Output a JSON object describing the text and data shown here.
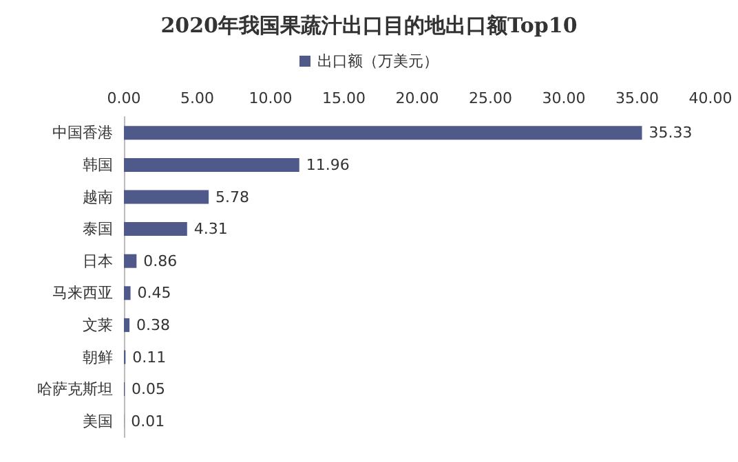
{
  "chart_data": {
    "type": "bar",
    "orientation": "horizontal",
    "title": "2020年我国果蔬汁出口目的地出口额Top10",
    "categories": [
      "中国香港",
      "韩国",
      "越南",
      "泰国",
      "日本",
      "马来西亚",
      "文莱",
      "朝鲜",
      "哈萨克斯坦",
      "美国"
    ],
    "series": [
      {
        "name": "出口额（万美元）",
        "color": "#4f5a8a",
        "values": [
          35.33,
          11.96,
          5.78,
          4.31,
          0.86,
          0.45,
          0.38,
          0.11,
          0.05,
          0.01
        ]
      }
    ],
    "xlim": [
      0,
      40
    ],
    "xticks": [
      {
        "value": 0,
        "label": "0.00"
      },
      {
        "value": 5,
        "label": "5.00"
      },
      {
        "value": 10,
        "label": "10.00"
      },
      {
        "value": 15,
        "label": "15.00"
      },
      {
        "value": 20,
        "label": "20.00"
      },
      {
        "value": 25,
        "label": "25.00"
      },
      {
        "value": 30,
        "label": "30.00"
      },
      {
        "value": 35,
        "label": "35.00"
      },
      {
        "value": 40,
        "label": "40.00"
      }
    ],
    "data_labels": true,
    "legend": "top",
    "grid": false
  }
}
